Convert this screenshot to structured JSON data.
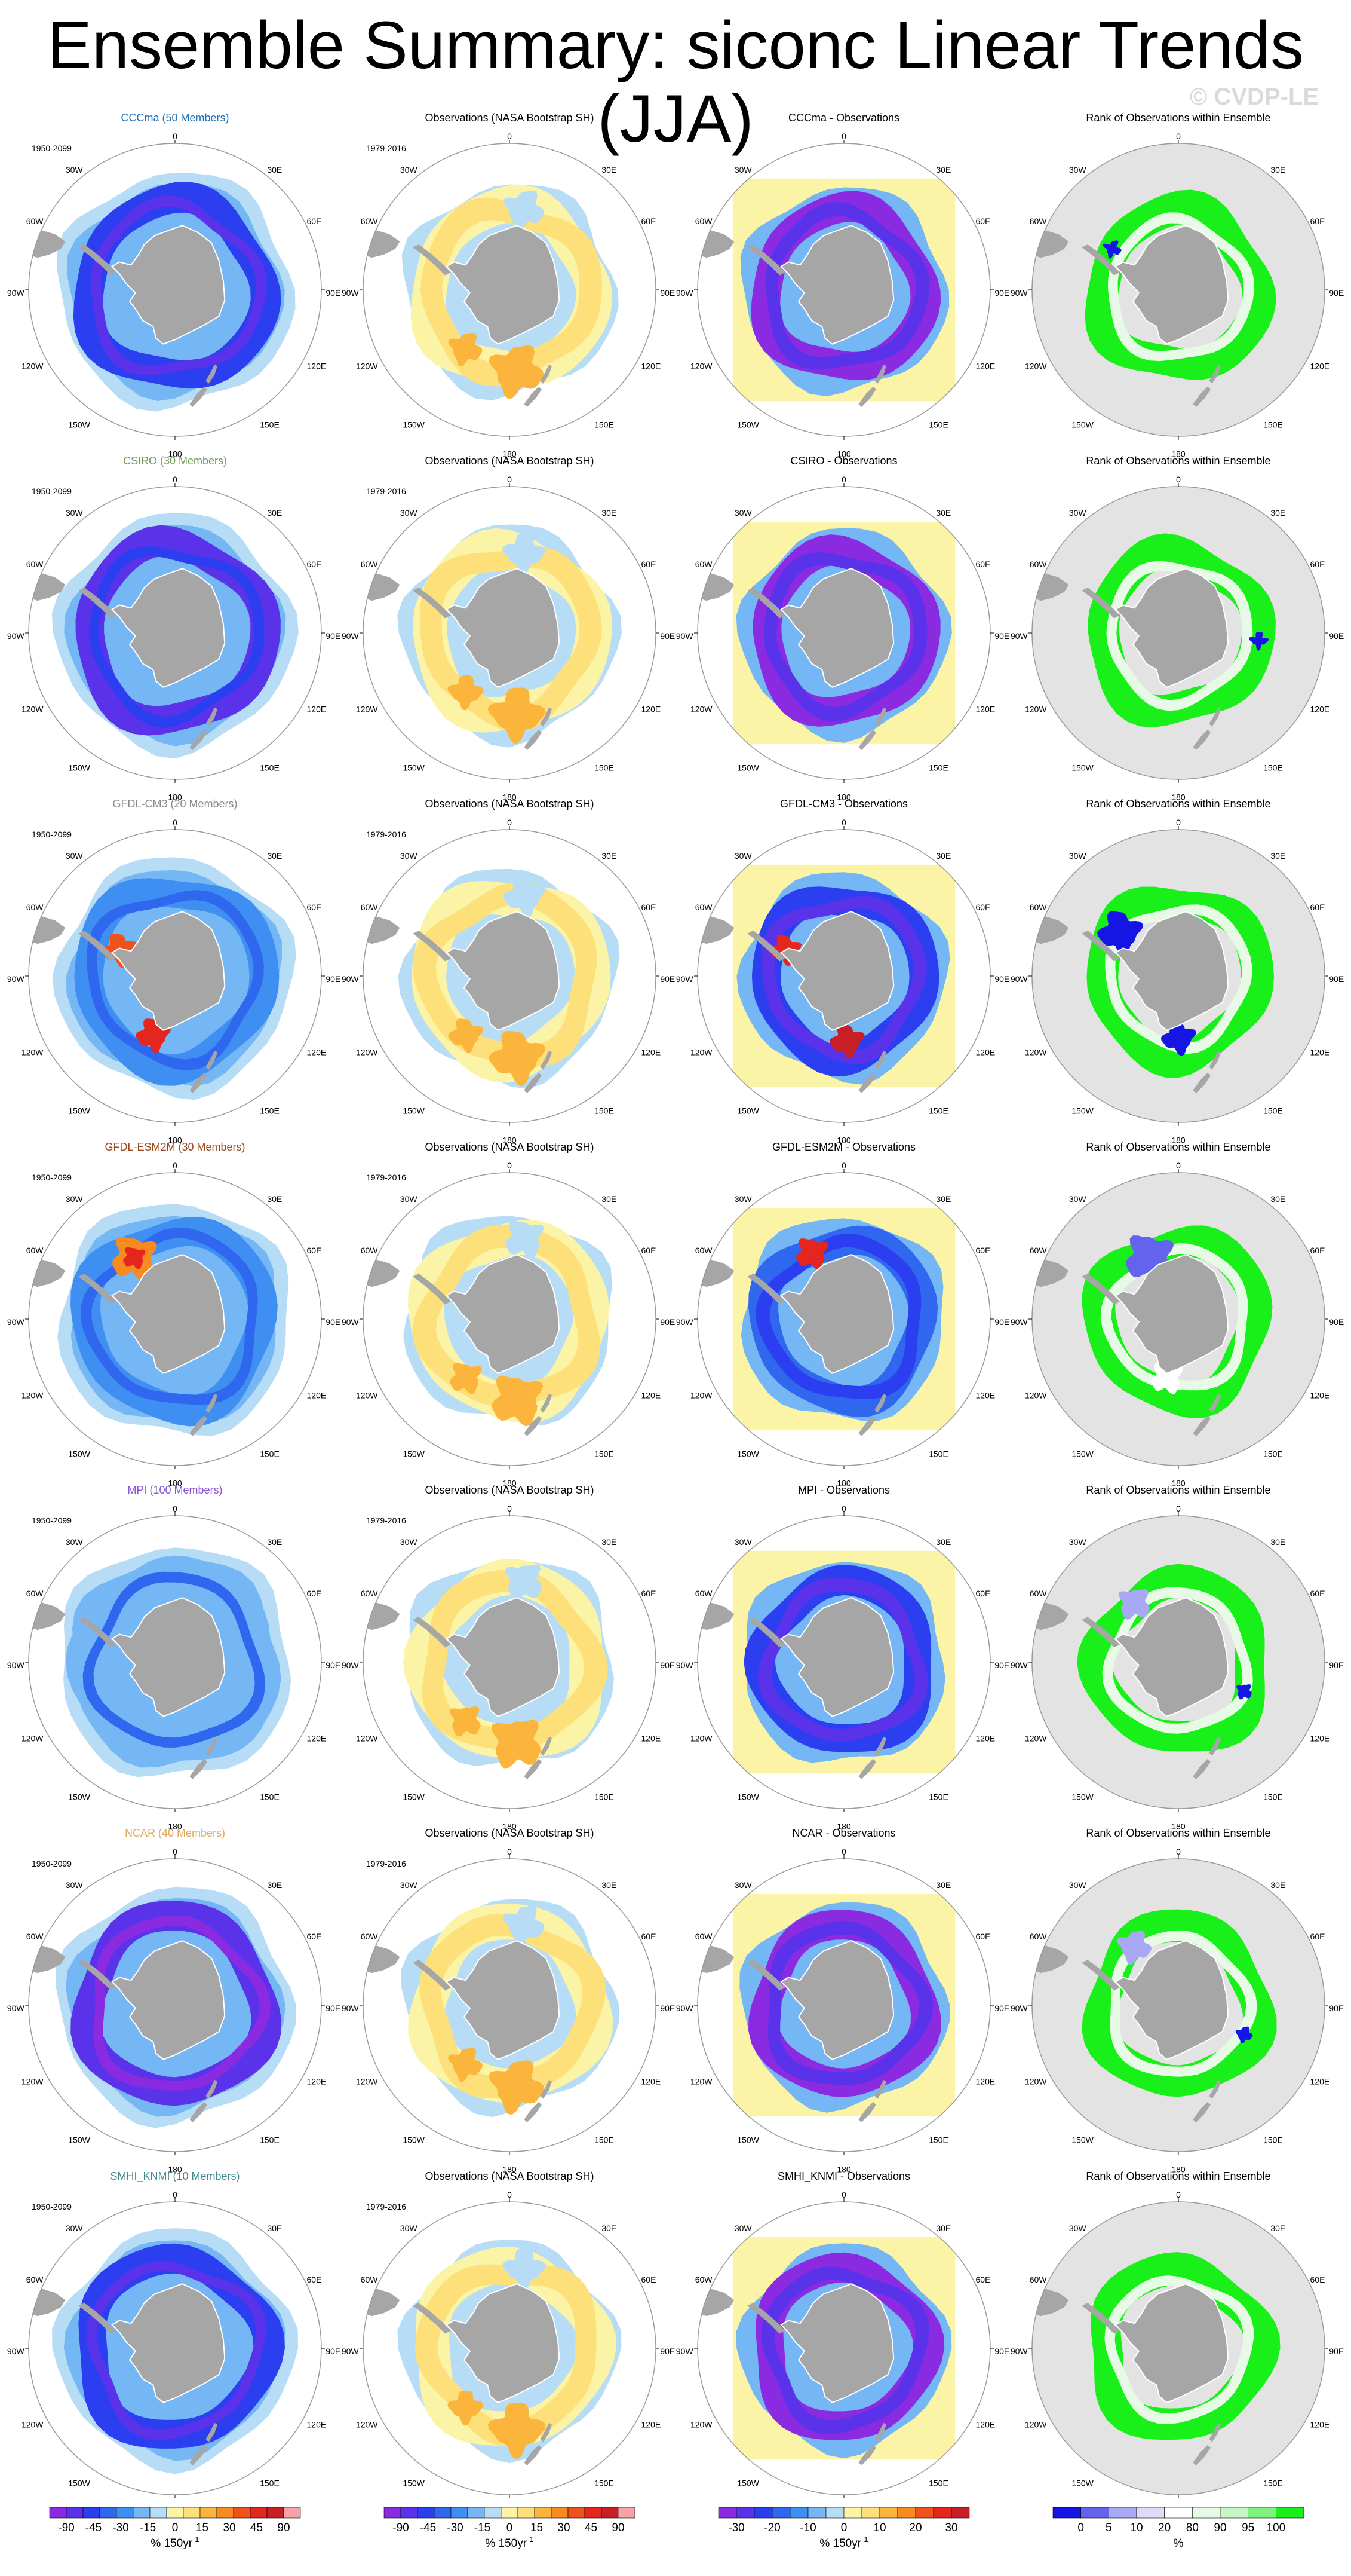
{
  "title": "Ensemble Summary: siconc Linear Trends (JJA)",
  "watermark": "© CVDP-LE",
  "colors": {
    "land": "#a6a6a6",
    "rank_background": "#e3e3e3",
    "grid": "#9a9a9a",
    "trend_palette": [
      "#8a2be2",
      "#5a32ea",
      "#2c3ff0",
      "#2f67ef",
      "#3f8ff2",
      "#74b7f4",
      "#b6dcf6",
      "#fbf4a7",
      "#fde07a",
      "#fbb53c",
      "#f78b1f",
      "#f0521c",
      "#e4261f",
      "#c81f24",
      "#f7a1a8"
    ],
    "rank_palette": [
      "#1515e6",
      "#6363ee",
      "#a8a8f4",
      "#dcdcf8",
      "#ffffff",
      "#e6fae6",
      "#c6f5c6",
      "#7ff27f",
      "#19f019"
    ]
  },
  "lat_lon_labels": {
    "top": "0",
    "upper_left": "30W",
    "upper_right": "30E",
    "left_upper": "60W",
    "right_upper": "60E",
    "left": "90W",
    "right": "90E",
    "left_lower": "120W",
    "right_lower": "120E",
    "lower_left": "150W",
    "lower_right": "150E",
    "bottom": "180"
  },
  "rows": [
    {
      "model": "CCCma (50 Members)",
      "model_color": "#1f6fb3",
      "model_period": "1950-2099",
      "obs_title": "Observations (NASA Bootstrap SH)",
      "obs_period": "1979-2016",
      "diff_title": "CCCma - Observations",
      "rank_title": "Rank of Observations within Ensemble"
    },
    {
      "model": "CSIRO (30 Members)",
      "model_color": "#6f9a5a",
      "model_period": "1950-2099",
      "obs_title": "Observations (NASA Bootstrap SH)",
      "obs_period": "1979-2016",
      "diff_title": "CSIRO - Observations",
      "rank_title": "Rank of Observations within Ensemble"
    },
    {
      "model": "GFDL-CM3 (20 Members)",
      "model_color": "#8a8a8a",
      "model_period": "1950-2099",
      "obs_title": "Observations (NASA Bootstrap SH)",
      "obs_period": "1979-2016",
      "diff_title": "GFDL-CM3 - Observations",
      "rank_title": "Rank of Observations within Ensemble"
    },
    {
      "model": "GFDL-ESM2M (30 Members)",
      "model_color": "#9a4a1a",
      "model_period": "1950-2099",
      "obs_title": "Observations (NASA Bootstrap SH)",
      "obs_period": "1979-2016",
      "diff_title": "GFDL-ESM2M - Observations",
      "rank_title": "Rank of Observations within Ensemble"
    },
    {
      "model": "MPI (100 Members)",
      "model_color": "#8a55d8",
      "model_period": "1950-2099",
      "obs_title": "Observations (NASA Bootstrap SH)",
      "obs_period": "1979-2016",
      "diff_title": "MPI - Observations",
      "rank_title": "Rank of Observations within Ensemble"
    },
    {
      "model": "NCAR (40 Members)",
      "model_color": "#e3a85a",
      "model_period": "1950-2099",
      "obs_title": "Observations (NASA Bootstrap SH)",
      "obs_period": "1979-2016",
      "diff_title": "NCAR - Observations",
      "rank_title": "Rank of Observations within Ensemble"
    },
    {
      "model": "SMHI_KNMI (10 Members)",
      "model_color": "#3f8a8a",
      "model_period": "1950-2099",
      "obs_title": "Observations (NASA Bootstrap SH)",
      "obs_period": "1979-2016",
      "diff_title": "SMHI_KNMI - Observations",
      "rank_title": "Rank of Observations within Ensemble"
    }
  ],
  "chart_data": {
    "type": "heatmap",
    "projection": "south polar stereographic",
    "panel_columns": [
      "ensemble mean trend",
      "observed trend",
      "ensemble mean minus observations",
      "rank of observations"
    ],
    "colorbars": [
      {
        "labels": [
          "-90",
          "-45",
          "-30",
          "-15",
          "0",
          "15",
          "30",
          "45",
          "90"
        ],
        "unit": "% 150yr",
        "unit_exp": "-1",
        "boundaries": [
          -90,
          -75,
          -60,
          -45,
          -30,
          -15,
          0,
          15,
          30,
          45,
          60,
          75,
          90
        ]
      },
      {
        "labels": [
          "-90",
          "-45",
          "-30",
          "-15",
          "0",
          "15",
          "30",
          "45",
          "90"
        ],
        "unit": "% 150yr",
        "unit_exp": "-1",
        "boundaries": [
          -90,
          -75,
          -60,
          -45,
          -30,
          -15,
          0,
          15,
          30,
          45,
          60,
          75,
          90
        ]
      },
      {
        "labels": [
          "-30",
          "-20",
          "-10",
          "0",
          "10",
          "20",
          "30"
        ],
        "unit": "% 150yr",
        "unit_exp": "-1",
        "boundaries": [
          -35,
          -30,
          -25,
          -20,
          -15,
          -10,
          -5,
          0,
          5,
          10,
          15,
          20,
          25,
          30,
          35
        ]
      },
      {
        "labels": [
          "0",
          "5",
          "10",
          "20",
          "80",
          "90",
          "95",
          "100"
        ],
        "unit": "%",
        "unit_exp": "",
        "boundaries": [
          0,
          5,
          10,
          20,
          80,
          90,
          95,
          100
        ]
      }
    ]
  }
}
